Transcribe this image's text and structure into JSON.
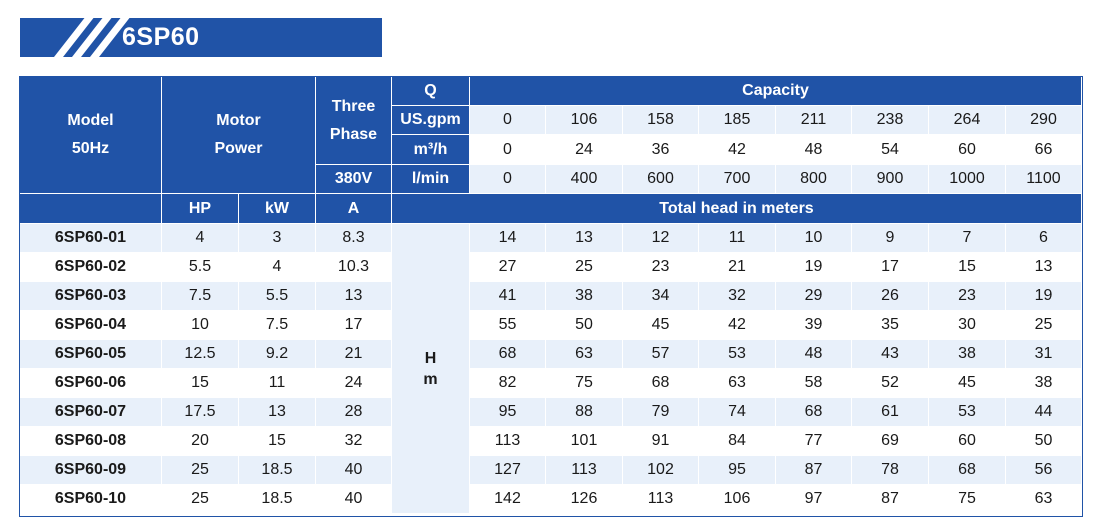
{
  "title": "6SP60",
  "header": {
    "model_line1": "Model",
    "model_line2": "50Hz",
    "motor_line1": "Motor",
    "motor_line2": "Power",
    "phase_line1": "Three",
    "phase_line2": "Phase",
    "volt": "380V",
    "q": "Q",
    "unit_usgpm": "US.gpm",
    "unit_m3h": "m³/h",
    "unit_lmin": "l/min",
    "capacity": "Capacity",
    "hp": "HP",
    "kw": "kW",
    "amp": "A",
    "total_head": "Total head in meters",
    "h_label_1": "H",
    "h_label_2": "m"
  },
  "capacity": {
    "usgpm": [
      "0",
      "106",
      "158",
      "185",
      "211",
      "238",
      "264",
      "290"
    ],
    "m3h": [
      "0",
      "24",
      "36",
      "42",
      "48",
      "54",
      "60",
      "66"
    ],
    "lmin": [
      "0",
      "400",
      "600",
      "700",
      "800",
      "900",
      "1000",
      "1100"
    ]
  },
  "rows": [
    {
      "model": "6SP60-01",
      "hp": "4",
      "kw": "3",
      "a": "8.3",
      "heads": [
        "14",
        "13",
        "12",
        "11",
        "10",
        "9",
        "7",
        "6"
      ]
    },
    {
      "model": "6SP60-02",
      "hp": "5.5",
      "kw": "4",
      "a": "10.3",
      "heads": [
        "27",
        "25",
        "23",
        "21",
        "19",
        "17",
        "15",
        "13"
      ]
    },
    {
      "model": "6SP60-03",
      "hp": "7.5",
      "kw": "5.5",
      "a": "13",
      "heads": [
        "41",
        "38",
        "34",
        "32",
        "29",
        "26",
        "23",
        "19"
      ]
    },
    {
      "model": "6SP60-04",
      "hp": "10",
      "kw": "7.5",
      "a": "17",
      "heads": [
        "55",
        "50",
        "45",
        "42",
        "39",
        "35",
        "30",
        "25"
      ]
    },
    {
      "model": "6SP60-05",
      "hp": "12.5",
      "kw": "9.2",
      "a": "21",
      "heads": [
        "68",
        "63",
        "57",
        "53",
        "48",
        "43",
        "38",
        "31"
      ]
    },
    {
      "model": "6SP60-06",
      "hp": "15",
      "kw": "11",
      "a": "24",
      "heads": [
        "82",
        "75",
        "68",
        "63",
        "58",
        "52",
        "45",
        "38"
      ]
    },
    {
      "model": "6SP60-07",
      "hp": "17.5",
      "kw": "13",
      "a": "28",
      "heads": [
        "95",
        "88",
        "79",
        "74",
        "68",
        "61",
        "53",
        "44"
      ]
    },
    {
      "model": "6SP60-08",
      "hp": "20",
      "kw": "15",
      "a": "32",
      "heads": [
        "113",
        "101",
        "91",
        "84",
        "77",
        "69",
        "60",
        "50"
      ]
    },
    {
      "model": "6SP60-09",
      "hp": "25",
      "kw": "18.5",
      "a": "40",
      "heads": [
        "127",
        "113",
        "102",
        "95",
        "87",
        "78",
        "68",
        "56"
      ]
    },
    {
      "model": "6SP60-10",
      "hp": "25",
      "kw": "18.5",
      "a": "40",
      "heads": [
        "142",
        "126",
        "113",
        "106",
        "97",
        "87",
        "75",
        "63"
      ]
    }
  ],
  "colors": {
    "header_blue": "#2053a7",
    "row_shade": "#e8f0fa",
    "white": "#ffffff"
  }
}
